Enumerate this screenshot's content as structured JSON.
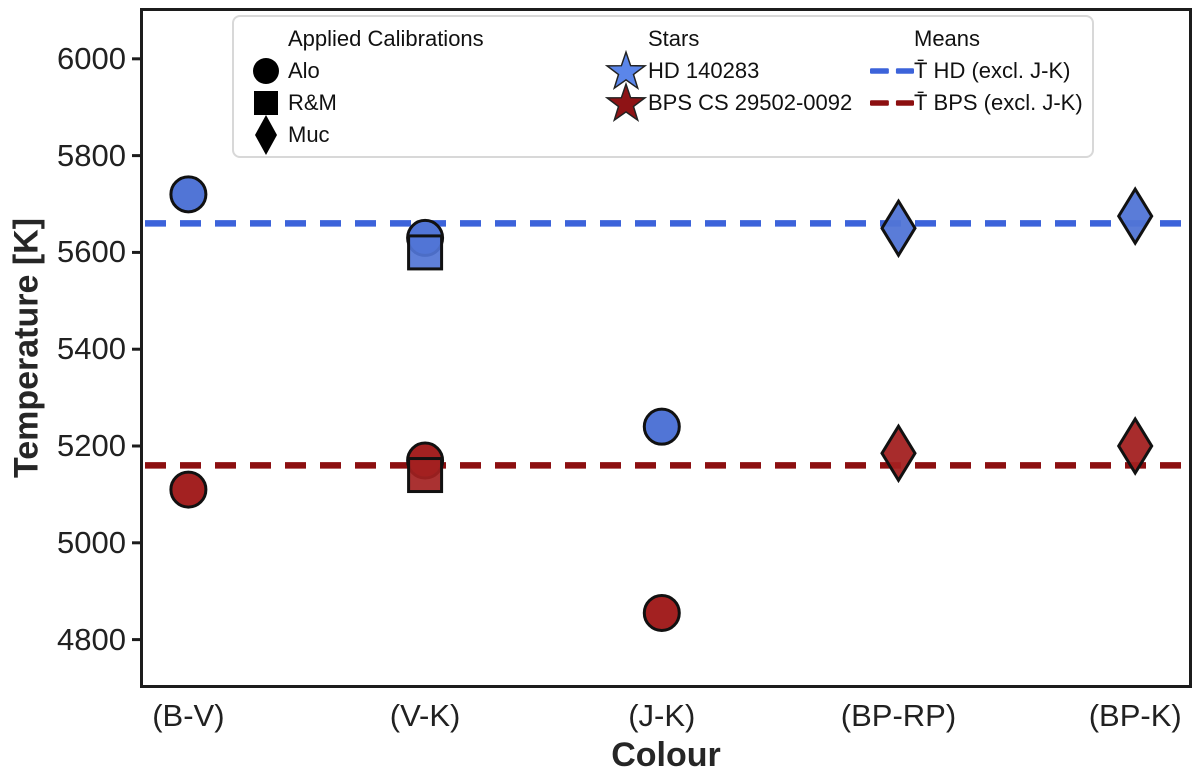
{
  "figure": {
    "xlabel": "Colour",
    "ylabel": "Temperature [K]"
  },
  "legend": {
    "calibrations": {
      "header": "Applied Calibrations",
      "items": [
        {
          "marker": "circle",
          "label": "Alo"
        },
        {
          "marker": "square",
          "label": "R&M"
        },
        {
          "marker": "diamond",
          "label": "Muc"
        }
      ],
      "marker_color": "#000000"
    },
    "stars": {
      "header": "Stars",
      "items": [
        {
          "marker": "star",
          "label": "HD 140283",
          "color": "#5b86ea"
        },
        {
          "marker": "star",
          "label": "BPS CS 29502-0092",
          "color": "#8e1315"
        }
      ]
    },
    "means": {
      "header": "Means",
      "items": [
        {
          "marker": "dashed-line",
          "label": "T̄ HD (excl. J-K)",
          "color": "#3c63da"
        },
        {
          "marker": "dashed-line",
          "label": "T̄ BPS (excl. J-K)",
          "color": "#8c0f10"
        }
      ]
    }
  },
  "chart_data": {
    "type": "scatter",
    "title": "",
    "xlabel": "Colour",
    "ylabel": "Temperature [K]",
    "categories": [
      "(B-V)",
      "(V-K)",
      "(J-K)",
      "(BP-RP)",
      "(BP-K)"
    ],
    "ylim": [
      4700,
      6105
    ],
    "yticks": [
      4800,
      5000,
      5200,
      5400,
      5600,
      5800,
      6000
    ],
    "grid": false,
    "legend_position": "upper center",
    "series": [
      {
        "name": "HD 140283",
        "color": "#5175d6",
        "points": [
          {
            "category": "(B-V)",
            "calibration": "Alo",
            "marker": "circle",
            "temperature": 5720
          },
          {
            "category": "(V-K)",
            "calibration": "Alo",
            "marker": "circle",
            "temperature": 5630
          },
          {
            "category": "(V-K)",
            "calibration": "R&M",
            "marker": "square",
            "temperature": 5600
          },
          {
            "category": "(J-K)",
            "calibration": "Alo",
            "marker": "circle",
            "temperature": 5240
          },
          {
            "category": "(BP-RP)",
            "calibration": "Muc",
            "marker": "diamond",
            "temperature": 5650
          },
          {
            "category": "(BP-K)",
            "calibration": "Muc",
            "marker": "diamond",
            "temperature": 5675
          }
        ]
      },
      {
        "name": "BPS CS 29502-0092",
        "color": "#a32121",
        "points": [
          {
            "category": "(B-V)",
            "calibration": "Alo",
            "marker": "circle",
            "temperature": 5110
          },
          {
            "category": "(V-K)",
            "calibration": "Alo",
            "marker": "circle",
            "temperature": 5170
          },
          {
            "category": "(V-K)",
            "calibration": "R&M",
            "marker": "square",
            "temperature": 5140
          },
          {
            "category": "(J-K)",
            "calibration": "Alo",
            "marker": "circle",
            "temperature": 4855
          },
          {
            "category": "(BP-RP)",
            "calibration": "Muc",
            "marker": "diamond",
            "temperature": 5185
          },
          {
            "category": "(BP-K)",
            "calibration": "Muc",
            "marker": "diamond",
            "temperature": 5200
          }
        ]
      }
    ],
    "mean_lines": [
      {
        "label": "T̄ HD (excl. J-K)",
        "value": 5660,
        "color": "#3c63da",
        "style": "dashed"
      },
      {
        "label": "T̄ BPS (excl. J-K)",
        "value": 5160,
        "color": "#8c0f10",
        "style": "dashed"
      }
    ]
  }
}
